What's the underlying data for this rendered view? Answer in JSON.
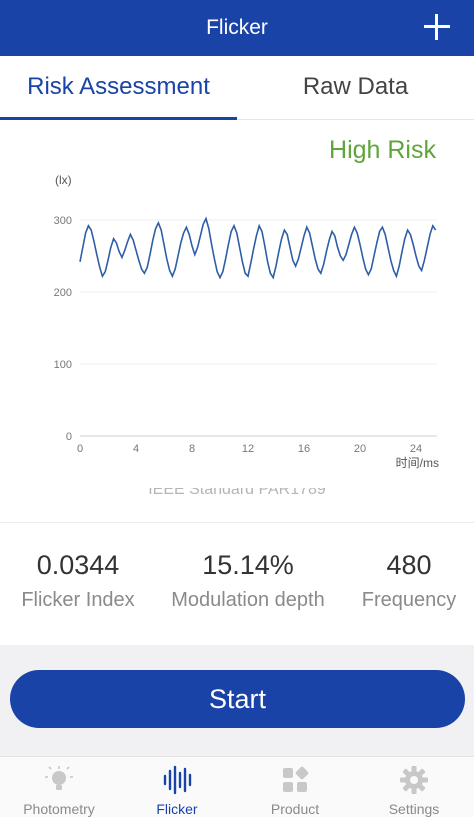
{
  "header": {
    "title": "Flicker",
    "add_icon": "plus-icon"
  },
  "tabs": [
    {
      "label": "Risk Assessment",
      "active": true
    },
    {
      "label": "Raw Data",
      "active": false
    }
  ],
  "risk_label": "High Risk",
  "colors": {
    "accent": "#1a43a8",
    "risk": "#5fa53b",
    "line": "#2f5ea8"
  },
  "chart_data": {
    "type": "line",
    "ylabel": "(lx)",
    "xlabel": "时间/ms",
    "xlim": [
      0,
      25.5
    ],
    "ylim": [
      0,
      300
    ],
    "yticks": [
      0,
      100,
      200,
      300
    ],
    "xticks": [
      0,
      4,
      8,
      12,
      16,
      20,
      24
    ],
    "grid": true,
    "series": [
      {
        "x": [
          0,
          0.2,
          0.4,
          0.6,
          0.8,
          1.0,
          1.2,
          1.4,
          1.6,
          1.8,
          2.0,
          2.2,
          2.4,
          2.6,
          2.8,
          3.0,
          3.2,
          3.4,
          3.6,
          3.8,
          4.0,
          4.2,
          4.4,
          4.6,
          4.8,
          5.0,
          5.2,
          5.4,
          5.6,
          5.8,
          6.0,
          6.2,
          6.4,
          6.6,
          6.8,
          7.0,
          7.2,
          7.4,
          7.6,
          7.8,
          8.0,
          8.2,
          8.4,
          8.6,
          8.8,
          9.0,
          9.2,
          9.4,
          9.6,
          9.8,
          10.0,
          10.2,
          10.4,
          10.6,
          10.8,
          11.0,
          11.2,
          11.4,
          11.6,
          11.8,
          12.0,
          12.2,
          12.4,
          12.6,
          12.8,
          13.0,
          13.2,
          13.4,
          13.6,
          13.8,
          14.0,
          14.2,
          14.4,
          14.6,
          14.8,
          15.0,
          15.2,
          15.4,
          15.6,
          15.8,
          16.0,
          16.2,
          16.4,
          16.6,
          16.8,
          17.0,
          17.2,
          17.4,
          17.6,
          17.8,
          18.0,
          18.2,
          18.4,
          18.6,
          18.8,
          19.0,
          19.2,
          19.4,
          19.6,
          19.8,
          20.0,
          20.2,
          20.4,
          20.6,
          20.8,
          21.0,
          21.2,
          21.4,
          21.6,
          21.8,
          22.0,
          22.2,
          22.4,
          22.6,
          22.8,
          23.0,
          23.2,
          23.4,
          23.6,
          23.8,
          24.0,
          24.2,
          24.4,
          24.6,
          24.8,
          25.0,
          25.2,
          25.4
        ],
        "y": [
          242,
          262,
          282,
          292,
          286,
          270,
          252,
          235,
          222,
          228,
          244,
          262,
          274,
          268,
          256,
          248,
          258,
          270,
          280,
          272,
          258,
          244,
          232,
          226,
          234,
          252,
          272,
          288,
          296,
          286,
          266,
          246,
          230,
          222,
          232,
          250,
          268,
          282,
          290,
          280,
          264,
          252,
          262,
          278,
          294,
          302,
          288,
          266,
          246,
          228,
          220,
          228,
          246,
          266,
          284,
          292,
          282,
          262,
          242,
          226,
          222,
          240,
          260,
          278,
          292,
          284,
          264,
          242,
          226,
          220,
          236,
          256,
          274,
          286,
          280,
          262,
          244,
          236,
          246,
          262,
          278,
          290,
          282,
          264,
          246,
          232,
          226,
          238,
          256,
          272,
          284,
          278,
          262,
          250,
          244,
          252,
          266,
          280,
          290,
          282,
          266,
          248,
          232,
          224,
          232,
          250,
          268,
          284,
          290,
          280,
          262,
          244,
          230,
          222,
          236,
          256,
          274,
          286,
          280,
          266,
          250,
          236,
          230,
          244,
          262,
          280,
          292,
          286
        ]
      }
    ]
  },
  "standard_text": "IEEE Standard PAR1789",
  "stats": [
    {
      "value": "0.0344",
      "label": "Flicker Index"
    },
    {
      "value": "15.14%",
      "label": "Modulation depth"
    },
    {
      "value": "480",
      "label": "Frequency"
    }
  ],
  "start_label": "Start",
  "nav": [
    {
      "label": "Photometry",
      "icon": "lightbulb-icon",
      "active": false
    },
    {
      "label": "Flicker",
      "icon": "waveform-icon",
      "active": true
    },
    {
      "label": "Product",
      "icon": "grid-icon",
      "active": false
    },
    {
      "label": "Settings",
      "icon": "gear-icon",
      "active": false
    }
  ]
}
